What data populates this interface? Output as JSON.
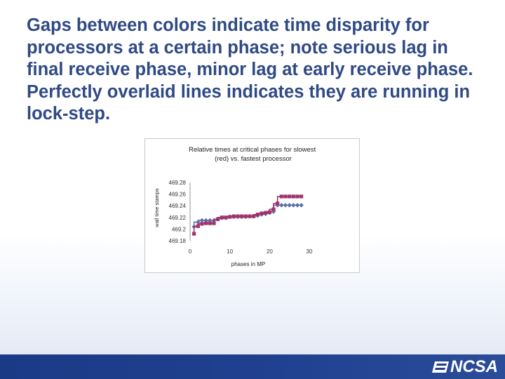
{
  "slide": {
    "text": "Gaps between colors indicate time disparity for processors at a certain phase; note serious lag in final receive phase, minor lag at early receive phase. Perfectly overlaid lines indicates they are running in lock-step."
  },
  "chart_data": {
    "type": "scatter",
    "title": "Relative times at critical phases for slowest (red) vs. fastest processor",
    "xlabel": "phases in MP",
    "ylabel": "wall time stamps",
    "xlim": [
      0,
      30
    ],
    "ylim": [
      469.18,
      469.28
    ],
    "x_ticks": [
      "0",
      "10",
      "20",
      "30"
    ],
    "y_ticks": [
      "469.28",
      "469.26",
      "469.24",
      "469.22",
      "469.2",
      "469.18"
    ],
    "series": [
      {
        "color": "#5b6fa8",
        "marker": "diamond",
        "x": [
          1,
          2,
          3,
          4,
          5,
          6,
          7,
          8,
          9,
          10,
          11,
          12,
          13,
          14,
          15,
          16,
          17,
          18,
          19,
          20,
          21,
          22,
          23,
          24,
          25,
          26,
          27,
          28
        ],
        "y": [
          469.204,
          469.212,
          469.215,
          469.215,
          469.215,
          469.215,
          469.217,
          469.219,
          469.219,
          469.221,
          469.221,
          469.221,
          469.221,
          469.221,
          469.222,
          469.222,
          469.223,
          469.225,
          469.226,
          469.228,
          469.23,
          469.241,
          469.241,
          469.241,
          469.241,
          469.241,
          469.241,
          469.241
        ]
      },
      {
        "color": "#a0336b",
        "marker": "square",
        "x": [
          1,
          2,
          3,
          4,
          5,
          6,
          7,
          8,
          9,
          10,
          11,
          12,
          13,
          14,
          15,
          16,
          17,
          18,
          19,
          20,
          21,
          22,
          23,
          24,
          25,
          26,
          27,
          28
        ],
        "y": [
          469.192,
          469.205,
          469.209,
          469.21,
          469.21,
          469.21,
          469.217,
          469.22,
          469.22,
          469.221,
          469.222,
          469.222,
          469.222,
          469.222,
          469.222,
          469.222,
          469.225,
          469.227,
          469.228,
          469.229,
          469.234,
          469.244,
          469.256,
          469.256,
          469.256,
          469.256,
          469.256,
          469.256
        ]
      }
    ]
  },
  "footer": {
    "logo_text": "NCSA",
    "bar_color": "#1f3f8c"
  }
}
